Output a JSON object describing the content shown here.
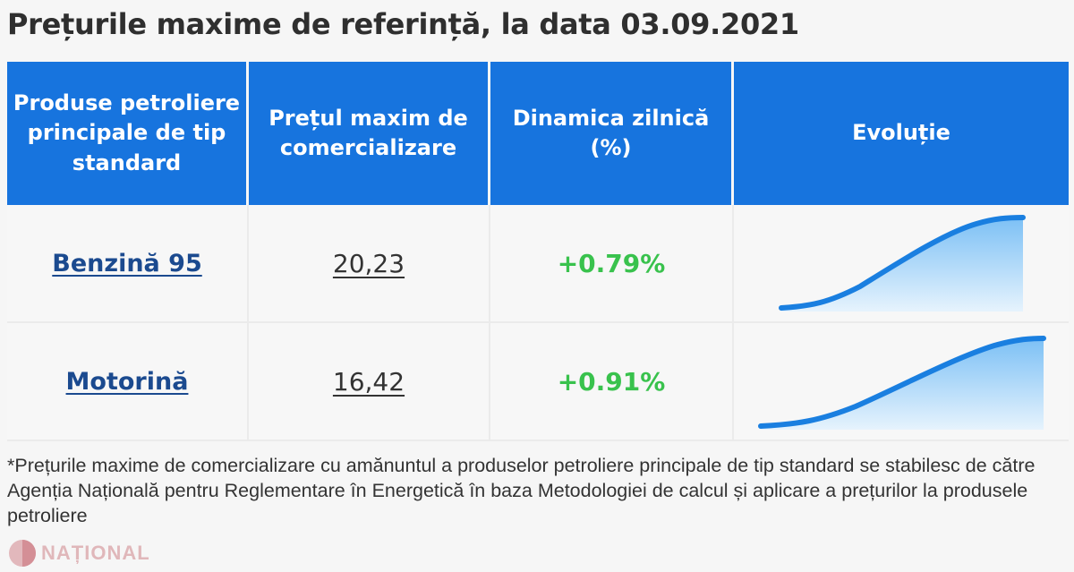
{
  "title": "Prețurile maxime de referință, la data 03.09.2021",
  "table": {
    "headers": [
      "Produse petroliere principale de tip standard",
      "Prețul maxim de comercializare",
      "Dinamica zilnică (%)",
      "Evoluție"
    ],
    "rows": [
      {
        "product": "Benzină 95",
        "price": "20,23",
        "change": "+0.79%"
      },
      {
        "product": "Motorină",
        "price": "16,42",
        "change": "+0.91%"
      }
    ]
  },
  "footnote": "*Prețurile maxime de comercializare cu amănuntul a produselor petroliere principale de tip standard se stabilesc de către Agenția Națională pentru Reglementare în Energetică în baza Metodologiei de calcul și aplicare a prețurilor la produsele petroliere",
  "logo": {
    "text": "NAȚIONAL"
  },
  "colors": {
    "header_bg": "#1774de",
    "link": "#1b4a8f",
    "positive_change": "#39c24d",
    "sparkline": "#1a7fe0"
  }
}
